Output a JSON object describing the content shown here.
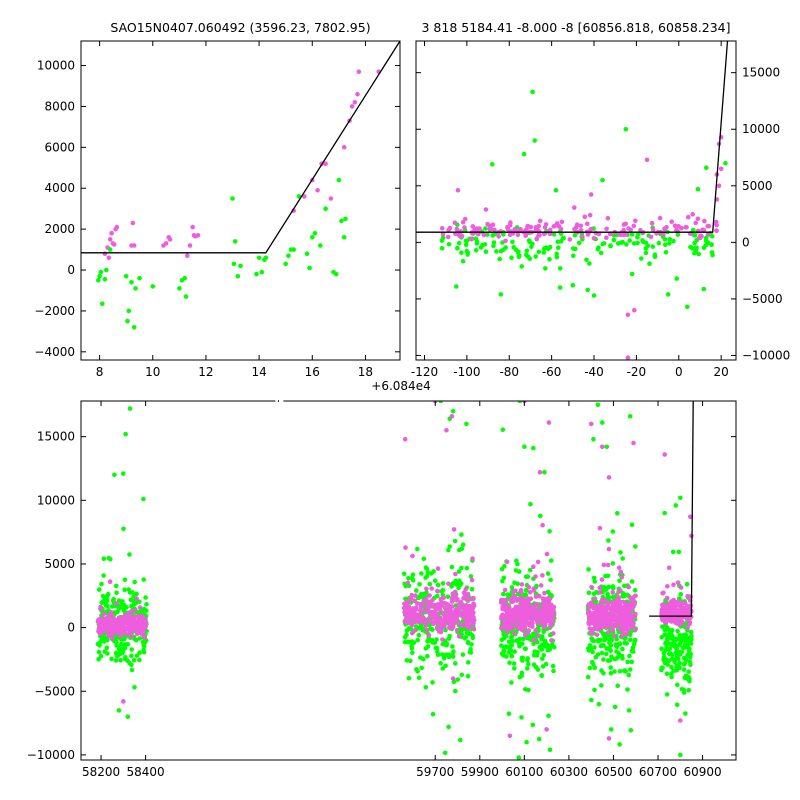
{
  "colors": {
    "green": "#00ff00",
    "magenta": "#ee5ddd",
    "line": "#000000",
    "axis": "#000000"
  },
  "chart_data": [
    {
      "id": "top-left",
      "type": "scatter",
      "title": "SAO15N0407.060492 (3596.23, 7802.95)",
      "xlim": [
        7.3,
        19.3
      ],
      "ylim": [
        -4400,
        11200
      ],
      "xticks": [
        8,
        10,
        12,
        14,
        16,
        18
      ],
      "yticks": [
        -4000,
        -2000,
        0,
        2000,
        4000,
        6000,
        8000,
        10000
      ],
      "ytick_side": "left",
      "fit_line": [
        [
          7.3,
          840
        ],
        [
          14.25,
          840
        ],
        [
          19.3,
          11200
        ]
      ],
      "series": [
        {
          "color": "magenta",
          "points": [
            [
              8.2,
              800
            ],
            [
              8.3,
              1100
            ],
            [
              8.35,
              600
            ],
            [
              8.4,
              1500
            ],
            [
              8.45,
              1800
            ],
            [
              8.5,
              1300
            ],
            [
              8.6,
              2000
            ],
            [
              8.65,
              2100
            ],
            [
              8.55,
              1250
            ],
            [
              9.2,
              1200
            ],
            [
              9.25,
              2300
            ],
            [
              9.3,
              1200
            ],
            [
              10.4,
              1200
            ],
            [
              10.5,
              1300
            ],
            [
              10.6,
              1600
            ],
            [
              10.65,
              1500
            ],
            [
              11.3,
              700
            ],
            [
              11.4,
              1200
            ],
            [
              11.5,
              2100
            ],
            [
              11.55,
              1700
            ],
            [
              11.7,
              1700
            ],
            [
              11.6,
              1650
            ],
            [
              15.3,
              2900
            ],
            [
              15.5,
              3600
            ],
            [
              15.7,
              3600
            ],
            [
              16.0,
              4400
            ],
            [
              16.2,
              3900
            ],
            [
              16.35,
              5200
            ],
            [
              16.5,
              5200
            ],
            [
              16.7,
              3500
            ],
            [
              17.2,
              6000
            ],
            [
              17.4,
              7300
            ],
            [
              17.5,
              8000
            ],
            [
              17.6,
              8200
            ],
            [
              17.7,
              8600
            ],
            [
              17.75,
              9700
            ],
            [
              18.5,
              9700
            ]
          ]
        },
        {
          "color": "green",
          "points": [
            [
              7.95,
              -500
            ],
            [
              8.0,
              -300
            ],
            [
              8.05,
              -100
            ],
            [
              8.1,
              -1650
            ],
            [
              8.2,
              -450
            ],
            [
              8.25,
              0
            ],
            [
              8.4,
              1000
            ],
            [
              9.0,
              -300
            ],
            [
              9.05,
              -2500
            ],
            [
              9.1,
              -2000
            ],
            [
              9.2,
              -600
            ],
            [
              9.3,
              -2800
            ],
            [
              9.35,
              -900
            ],
            [
              9.5,
              -400
            ],
            [
              10.0,
              -800
            ],
            [
              11.0,
              -900
            ],
            [
              11.1,
              -500
            ],
            [
              11.2,
              -400
            ],
            [
              11.25,
              -1300
            ],
            [
              13.0,
              3500
            ],
            [
              13.1,
              1400
            ],
            [
              13.05,
              300
            ],
            [
              13.2,
              -300
            ],
            [
              13.3,
              200
            ],
            [
              13.9,
              -200
            ],
            [
              14.0,
              600
            ],
            [
              14.1,
              -100
            ],
            [
              14.2,
              500
            ],
            [
              14.25,
              600
            ],
            [
              15.0,
              300
            ],
            [
              15.1,
              700
            ],
            [
              15.2,
              1000
            ],
            [
              15.3,
              1000
            ],
            [
              15.5,
              3600
            ],
            [
              15.8,
              800
            ],
            [
              15.9,
              100
            ],
            [
              16.0,
              1600
            ],
            [
              16.1,
              1800
            ],
            [
              16.3,
              1200
            ],
            [
              16.5,
              3000
            ],
            [
              16.8,
              -100
            ],
            [
              16.9,
              -200
            ],
            [
              17.0,
              4400
            ],
            [
              17.1,
              2400
            ],
            [
              17.2,
              1600
            ],
            [
              17.25,
              2500
            ]
          ]
        }
      ]
    },
    {
      "id": "top-right",
      "type": "scatter",
      "title": "3 818 5184.41 -8.000 -8 [60856.818, 60858.234]",
      "xlim": [
        60716,
        60867
      ],
      "ylim": [
        -10400,
        17800
      ],
      "xticks": [
        60720,
        60740,
        60760,
        60780,
        60800,
        60820,
        60840,
        60860
      ],
      "yticks": [
        -10000,
        -5000,
        0,
        5000,
        10000,
        15000
      ],
      "ytick_side": "right",
      "offset_label": "+6.084e4",
      "fit_line": [
        [
          60716,
          900
        ],
        [
          60856,
          900
        ],
        [
          60863,
          17800
        ]
      ],
      "band": {
        "x_start": 60728,
        "x_end": 60858,
        "magenta_center": 1100,
        "magenta_spread": 800,
        "green_center": -200,
        "green_spread": 1400,
        "count": 170
      },
      "series": [
        {
          "color": "green",
          "points": [
            [
              60752,
              6900
            ],
            [
              60767,
              7800
            ],
            [
              60771,
              13300
            ],
            [
              60772,
              9000
            ],
            [
              60777,
              -2300
            ],
            [
              60779,
              -1500
            ],
            [
              60782,
              4600
            ],
            [
              60784,
              -4000
            ],
            [
              60797,
              -4200
            ],
            [
              60800,
              -4700
            ],
            [
              60804,
              5500
            ],
            [
              60815,
              10000
            ],
            [
              60818,
              -2800
            ],
            [
              60835,
              -4600
            ],
            [
              60839,
              -3200
            ],
            [
              60844,
              -5700
            ],
            [
              60849,
              4700
            ],
            [
              60853,
              6600
            ],
            [
              60862,
              7000
            ],
            [
              60735,
              -3900
            ],
            [
              60756,
              -4600
            ],
            [
              60790,
              -3800
            ]
          ]
        },
        {
          "color": "magenta",
          "points": [
            [
              60825,
              7300
            ],
            [
              60816,
              -10200
            ],
            [
              60816,
              -6400
            ],
            [
              60819,
              -6000
            ],
            [
              60858,
              6000
            ],
            [
              60859,
              8700
            ],
            [
              60860,
              9300
            ],
            [
              60860,
              6500
            ],
            [
              60859,
              5000
            ],
            [
              60858,
              3800
            ]
          ]
        }
      ]
    },
    {
      "id": "bottom",
      "type": "scatter",
      "title": "",
      "xlim": [
        58110,
        61050
      ],
      "ylim": [
        -10400,
        17800
      ],
      "xticks": [
        58200,
        58400,
        59700,
        59900,
        60100,
        60300,
        60500,
        60700,
        60900
      ],
      "yticks": [
        -10000,
        -5000,
        0,
        5000,
        10000,
        15000
      ],
      "ytick_side": "left",
      "fit_line": [
        [
          60660,
          900
        ],
        [
          60850,
          900
        ],
        [
          60858,
          17800
        ]
      ],
      "clusters": [
        {
          "x_start": 58185,
          "x_end": 58405,
          "magenta_center": 200,
          "magenta_spread": 700,
          "green_center": 300,
          "green_spread": 2800,
          "count": 260
        },
        {
          "x_start": 59560,
          "x_end": 59875,
          "magenta_center": 1100,
          "magenta_spread": 1300,
          "green_center": 700,
          "green_spread": 3800,
          "count": 300
        },
        {
          "x_start": 59995,
          "x_end": 60235,
          "magenta_center": 1100,
          "magenta_spread": 1200,
          "green_center": 400,
          "green_spread": 3800,
          "count": 300
        },
        {
          "x_start": 60385,
          "x_end": 60600,
          "magenta_center": 900,
          "magenta_spread": 1100,
          "green_center": 300,
          "green_spread": 3600,
          "count": 300
        },
        {
          "x_start": 60715,
          "x_end": 60850,
          "magenta_center": 1100,
          "magenta_spread": 700,
          "green_center": -1000,
          "green_spread": 3000,
          "count": 180
        }
      ],
      "series": [
        {
          "color": "green",
          "points": [
            [
              58330,
              17200
            ],
            [
              58310,
              15200
            ],
            [
              58260,
              12000
            ],
            [
              58300,
              12100
            ],
            [
              58390,
              10100
            ],
            [
              59725,
              17800
            ],
            [
              59780,
              17000
            ],
            [
              59840,
              16000
            ],
            [
              59765,
              16400
            ],
            [
              60080,
              17800
            ],
            [
              60100,
              14200
            ],
            [
              60140,
              14100
            ],
            [
              60190,
              12200
            ],
            [
              60430,
              17500
            ],
            [
              60450,
              16100
            ],
            [
              60470,
              14200
            ],
            [
              60410,
              14800
            ],
            [
              60575,
              16600
            ],
            [
              60800,
              10200
            ],
            [
              60780,
              9600
            ],
            [
              60730,
              9000
            ],
            [
              60075,
              -10200
            ],
            [
              60110,
              -9000
            ],
            [
              60215,
              -9600
            ],
            [
              60800,
              -10000
            ],
            [
              60490,
              -8000
            ],
            [
              60570,
              -6500
            ],
            [
              59690,
              -6800
            ],
            [
              58320,
              -7000
            ],
            [
              58280,
              -6500
            ],
            [
              59760,
              -7800
            ]
          ]
        },
        {
          "color": "magenta",
          "points": [
            [
              59700,
              17800
            ],
            [
              59775,
              16600
            ],
            [
              59750,
              15500
            ],
            [
              59565,
              14800
            ],
            [
              60100,
              17800
            ],
            [
              60210,
              16100
            ],
            [
              60170,
              12200
            ],
            [
              60480,
              11800
            ],
            [
              60400,
              16000
            ],
            [
              60450,
              14200
            ],
            [
              60590,
              14500
            ],
            [
              60730,
              13600
            ],
            [
              60845,
              8700
            ],
            [
              60850,
              7200
            ],
            [
              60800,
              -7300
            ],
            [
              60480,
              -8700
            ],
            [
              60200,
              -8000
            ],
            [
              60035,
              -8500
            ],
            [
              59780,
              -4000
            ],
            [
              58300,
              -5800
            ]
          ]
        }
      ]
    }
  ]
}
